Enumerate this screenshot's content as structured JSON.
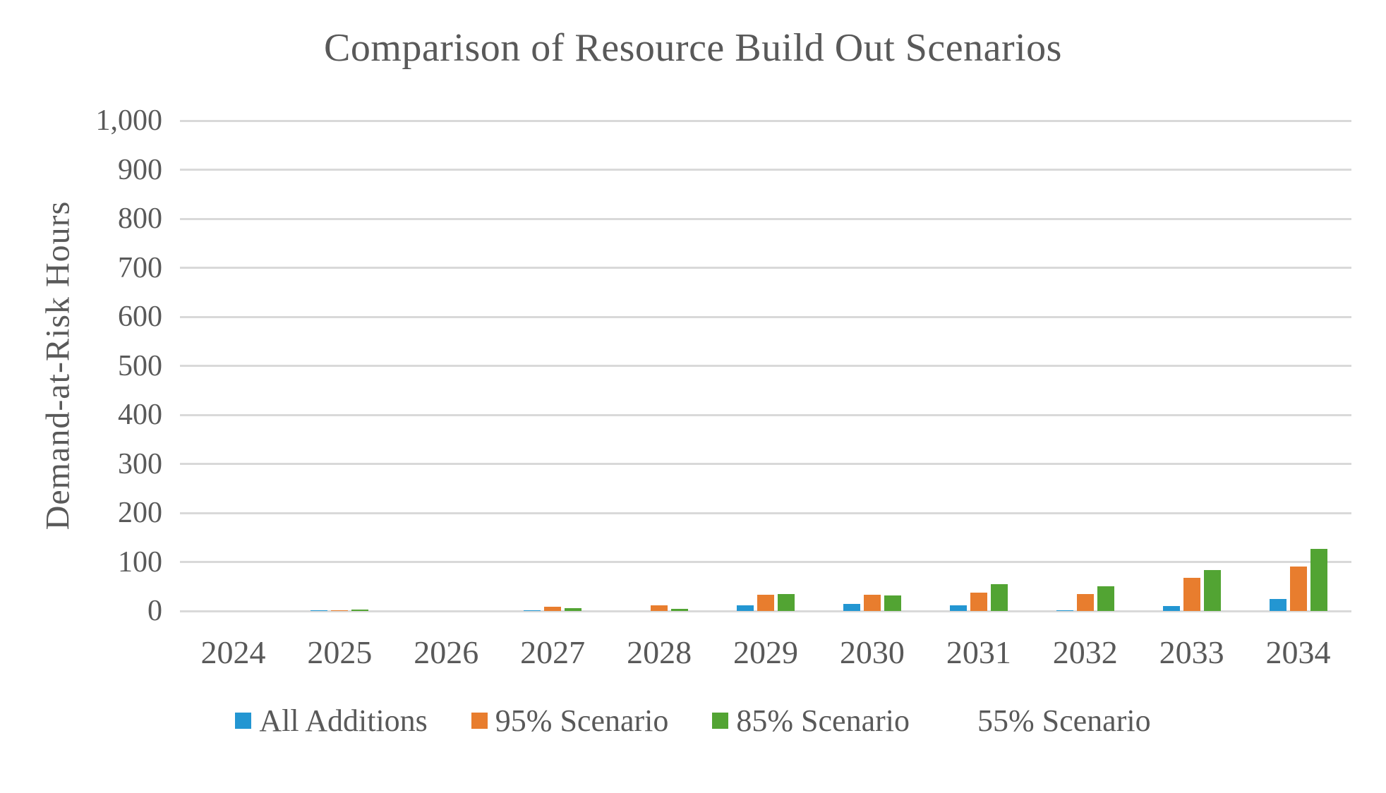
{
  "title": "Comparison of Resource Build Out Scenarios",
  "chart_data": {
    "type": "bar",
    "title": "Comparison of Resource Build Out Scenarios",
    "xlabel": "",
    "ylabel": "Demand-at-Risk Hours",
    "ylim": [
      0,
      1000
    ],
    "ytick_step": 100,
    "ytick_labels": [
      "0",
      "100",
      "200",
      "300",
      "400",
      "500",
      "600",
      "700",
      "800",
      "900",
      "1,000"
    ],
    "grid": true,
    "legend_position": "bottom",
    "categories": [
      "2024",
      "2025",
      "2026",
      "2027",
      "2028",
      "2029",
      "2030",
      "2031",
      "2032",
      "2033",
      "2034"
    ],
    "series": [
      {
        "name": "All Additions",
        "color": "#2396D2",
        "visible": true,
        "values": [
          0,
          2,
          0,
          2,
          0,
          12,
          15,
          12,
          2,
          10,
          25
        ]
      },
      {
        "name": "95% Scenario",
        "color": "#E87D2E",
        "visible": true,
        "values": [
          0,
          2,
          0,
          8,
          12,
          33,
          33,
          37,
          34,
          67,
          90
        ]
      },
      {
        "name": "85% Scenario",
        "color": "#52A433",
        "visible": true,
        "values": [
          0,
          3,
          0,
          6,
          5,
          35,
          31,
          54,
          50,
          84,
          127
        ]
      },
      {
        "name": "55% Scenario",
        "color": "#FFFFFF",
        "visible": false,
        "values": [
          0,
          0,
          0,
          0,
          0,
          0,
          0,
          0,
          0,
          0,
          0
        ]
      }
    ],
    "colors": {
      "text": "#595959",
      "gridline": "#D9D9D9",
      "background": "#FFFFFF"
    }
  }
}
